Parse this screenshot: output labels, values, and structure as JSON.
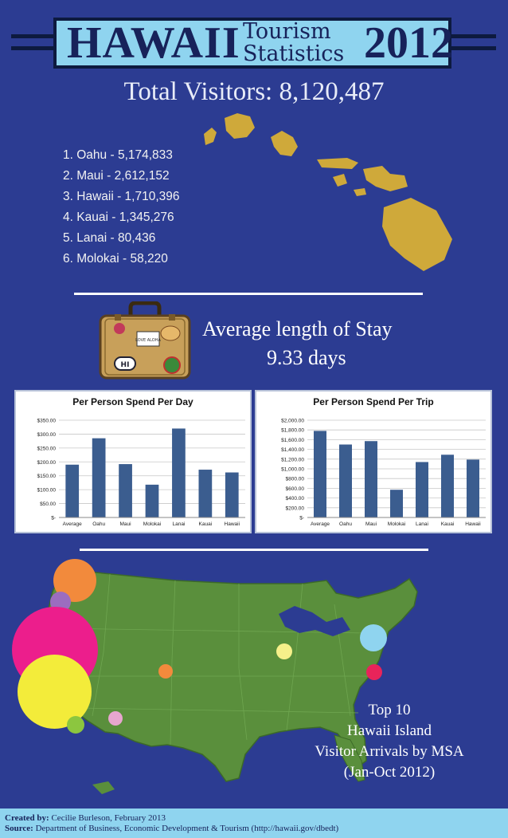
{
  "header": {
    "title_main": "HAWAII",
    "title_sub1": "Tourism",
    "title_sub2": "Statistics",
    "year": "2012"
  },
  "total_visitors": "Total Visitors: 8,120,487",
  "islands": [
    {
      "rank": "1.",
      "name": "Oahu",
      "visitors": "5,174,833"
    },
    {
      "rank": "2.",
      "name": "Maui",
      "visitors": "2,612,152"
    },
    {
      "rank": "3.",
      "name": "Hawaii",
      "visitors": "1,710,396"
    },
    {
      "rank": "4.",
      "name": "Kauai",
      "visitors": "1,345,276"
    },
    {
      "rank": "5.",
      "name": "Lanai",
      "visitors": "80,436"
    },
    {
      "rank": "6.",
      "name": "Molokai",
      "visitors": "58,220"
    }
  ],
  "stay": {
    "line1": "Average length of Stay",
    "line2": "9.33 days",
    "suitcase_sticker": "LOVE ALOHA",
    "suitcase_sticker2": "HI"
  },
  "msa": {
    "line1": "Top 10",
    "line2": "Hawaii Island",
    "line3": "Visitor Arrivals by MSA",
    "line4": "(Jan-Oct 2012)"
  },
  "footer": {
    "created_label": "Created by:",
    "created_value": "Cecilie Burleson, February 2013",
    "source_label": "Source:",
    "source_value": "Department of Business, Economic Development & Tourism (http://hawaii.gov/dbedt)"
  },
  "colors": {
    "background": "#2c3c92",
    "accent": "#8fd4ef",
    "bar": "#3b5d8f",
    "island": "#cfa93a",
    "usmap": "#5a8f3c"
  },
  "chart_data": [
    {
      "type": "bar",
      "title": "Per Person Spend Per Day",
      "categories": [
        "Average",
        "Oahu",
        "Maui",
        "Molokai",
        "Lanai",
        "Kauai",
        "Hawaii"
      ],
      "values": [
        190,
        285,
        192,
        118,
        320,
        172,
        162
      ],
      "yticks": [
        "$-",
        "$50.00",
        "$100.00",
        "$150.00",
        "$200.00",
        "$250.00",
        "$300.00",
        "$350.00"
      ],
      "ylim": [
        0,
        350
      ],
      "grid": true
    },
    {
      "type": "bar",
      "title": "Per Person Spend Per Trip",
      "categories": [
        "Average",
        "Oahu",
        "Maui",
        "Molokai",
        "Lanai",
        "Kauai",
        "Hawaii"
      ],
      "values": [
        1780,
        1500,
        1570,
        570,
        1140,
        1290,
        1190
      ],
      "yticks": [
        "$-",
        "$200.00",
        "$400.00",
        "$600.00",
        "$800.00",
        "$1,000.00",
        "$1,200.00",
        "$1,400.00",
        "$1,600.00",
        "$1,800.00",
        "$2,000.00"
      ],
      "ylim": [
        0,
        2000
      ],
      "grid": true
    }
  ]
}
